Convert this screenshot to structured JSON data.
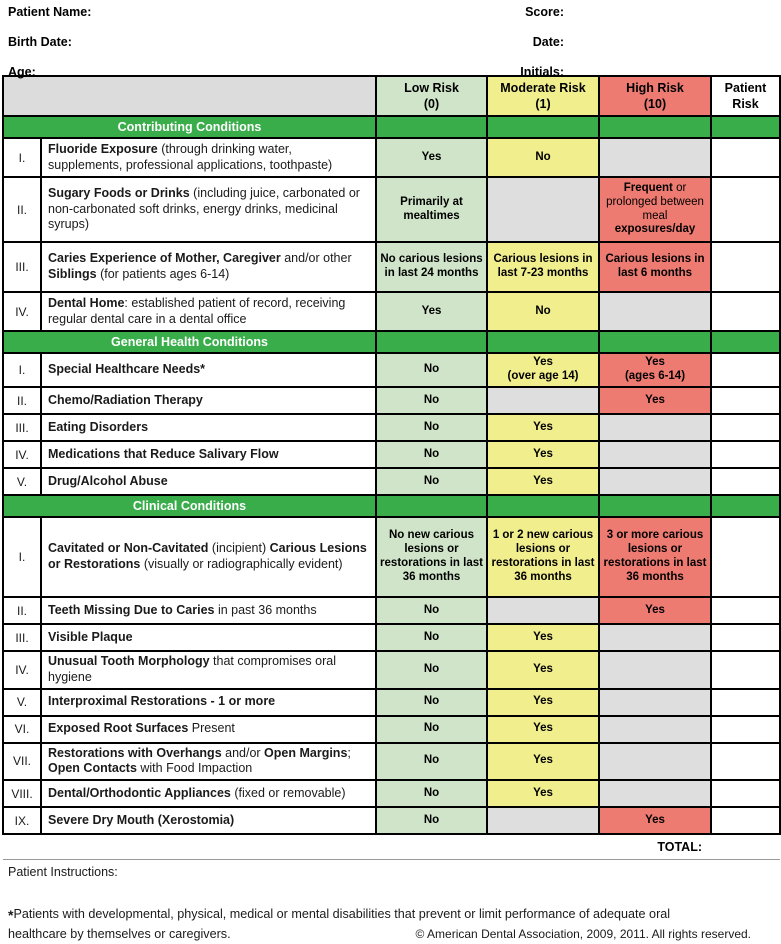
{
  "colors": {
    "section_green": "#3aad4b",
    "low_green": "#cfe4c8",
    "moderate_yellow": "#f1ee8e",
    "high_red": "#ee7b71",
    "na_gray": "#dedede",
    "header_gray": "#dcdcdc"
  },
  "top": {
    "left": [
      "Patient Name:",
      "Birth Date:",
      "Age:"
    ],
    "right": [
      "Score:",
      "Date:",
      "Initials:"
    ]
  },
  "header": {
    "cols": [
      {
        "label": "Low Risk",
        "sub": "(0)"
      },
      {
        "label": "Moderate Risk",
        "sub": "(1)"
      },
      {
        "label": "High Risk",
        "sub": "(10)"
      },
      {
        "label": "Patient",
        "sub": "Risk"
      }
    ]
  },
  "sections": [
    {
      "title": "Contributing Conditions",
      "rows": [
        {
          "num": "I.",
          "desc": [
            {
              "b": 1,
              "t": "Fluoride Exposure"
            },
            {
              "b": 0,
              "t": " (through drinking water, supplements, professional applications, toothpaste)"
            }
          ],
          "low": {
            "label": "Yes"
          },
          "mod": {
            "label": "No"
          },
          "high": {}
        },
        {
          "num": "II.",
          "desc": [
            {
              "b": 1,
              "t": "Sugary Foods or Drinks"
            },
            {
              "b": 0,
              "t": " (including juice, carbonated or non-carbonated soft drinks, energy drinks, medicinal syrups)"
            }
          ],
          "low": {
            "label": "Primarily at mealtimes"
          },
          "mod": {},
          "high": {
            "segs": [
              {
                "b": 1,
                "t": "Frequent"
              },
              {
                "b": 0,
                "t": " or prolonged between meal "
              },
              {
                "b": 1,
                "t": "exposures/day"
              }
            ]
          }
        },
        {
          "num": "III.",
          "desc": [
            {
              "b": 1,
              "t": "Caries Experience of Mother, Caregiver"
            },
            {
              "b": 0,
              "t": " and/or other "
            },
            {
              "b": 1,
              "t": "Siblings"
            },
            {
              "b": 0,
              "t": " (for patients ages 6-14)"
            }
          ],
          "low": {
            "label": "No carious lesions in last 24 months"
          },
          "mod": {
            "label": "Carious lesions in last 7-23 months"
          },
          "high": {
            "label": "Carious lesions in last 6 months"
          }
        },
        {
          "num": "IV.",
          "desc": [
            {
              "b": 1,
              "t": "Dental Home"
            },
            {
              "b": 0,
              "t": ": established patient of record, receiving regular dental care in a dental office"
            }
          ],
          "low": {
            "label": "Yes"
          },
          "mod": {
            "label": "No"
          },
          "high": {}
        }
      ]
    },
    {
      "title": "General Health Conditions",
      "rows": [
        {
          "num": "I.",
          "desc": [
            {
              "b": 1,
              "t": "Special Healthcare Needs*"
            }
          ],
          "low": {
            "label": "No"
          },
          "mod": {
            "label": "Yes",
            "sub": "(over age 14)"
          },
          "high": {
            "label": "Yes",
            "sub": "(ages 6-14)"
          }
        },
        {
          "num": "II.",
          "desc": [
            {
              "b": 1,
              "t": "Chemo/Radiation Therapy"
            }
          ],
          "low": {
            "label": "No"
          },
          "mod": {},
          "high": {
            "label": "Yes"
          }
        },
        {
          "num": "III.",
          "desc": [
            {
              "b": 1,
              "t": "Eating Disorders"
            }
          ],
          "low": {
            "label": "No"
          },
          "mod": {
            "label": "Yes"
          },
          "high": {}
        },
        {
          "num": "IV.",
          "desc": [
            {
              "b": 1,
              "t": "Medications that Reduce Salivary Flow"
            }
          ],
          "low": {
            "label": "No"
          },
          "mod": {
            "label": "Yes"
          },
          "high": {}
        },
        {
          "num": "V.",
          "desc": [
            {
              "b": 1,
              "t": "Drug/Alcohol Abuse"
            }
          ],
          "low": {
            "label": "No"
          },
          "mod": {
            "label": "Yes"
          },
          "high": {}
        }
      ]
    },
    {
      "title": "Clinical Conditions",
      "rows": [
        {
          "num": "I.",
          "desc": [
            {
              "b": 1,
              "t": "Cavitated or Non-Cavitated"
            },
            {
              "b": 0,
              "t": " (incipient) "
            },
            {
              "b": 1,
              "t": "Carious Lesions or Restorations"
            },
            {
              "b": 0,
              "t": " (visually or radiographically evident)"
            }
          ],
          "low": {
            "label": "No new carious lesions or restorations in last 36 months"
          },
          "mod": {
            "label": "1 or 2 new carious lesions or restorations in last 36 months"
          },
          "high": {
            "label": "3 or more carious lesions or restorations in last 36 months"
          }
        },
        {
          "num": "II.",
          "desc": [
            {
              "b": 1,
              "t": "Teeth Missing Due to Caries"
            },
            {
              "b": 0,
              "t": " in past 36 months"
            }
          ],
          "low": {
            "label": "No"
          },
          "mod": {},
          "high": {
            "label": "Yes"
          }
        },
        {
          "num": "III.",
          "desc": [
            {
              "b": 1,
              "t": "Visible Plaque"
            }
          ],
          "low": {
            "label": "No"
          },
          "mod": {
            "label": "Yes"
          },
          "high": {}
        },
        {
          "num": "IV.",
          "desc": [
            {
              "b": 1,
              "t": "Unusual Tooth Morphology"
            },
            {
              "b": 0,
              "t": " that compromises oral hygiene"
            }
          ],
          "low": {
            "label": "No"
          },
          "mod": {
            "label": "Yes"
          },
          "high": {}
        },
        {
          "num": "V.",
          "desc": [
            {
              "b": 1,
              "t": "Interproximal Restorations - 1 or more"
            }
          ],
          "low": {
            "label": "No"
          },
          "mod": {
            "label": "Yes"
          },
          "high": {}
        },
        {
          "num": "VI.",
          "desc": [
            {
              "b": 1,
              "t": "Exposed Root Surfaces"
            },
            {
              "b": 0,
              "t": " Present"
            }
          ],
          "low": {
            "label": "No"
          },
          "mod": {
            "label": "Yes"
          },
          "high": {}
        },
        {
          "num": "VII.",
          "desc": [
            {
              "b": 1,
              "t": "Restorations with Overhangs"
            },
            {
              "b": 0,
              "t": " and/or "
            },
            {
              "b": 1,
              "t": "Open Margins"
            },
            {
              "b": 0,
              "t": "; "
            },
            {
              "b": 1,
              "t": "Open Contacts"
            },
            {
              "b": 0,
              "t": " with Food Impaction"
            }
          ],
          "low": {
            "label": "No"
          },
          "mod": {
            "label": "Yes"
          },
          "high": {}
        },
        {
          "num": "VIII.",
          "desc": [
            {
              "b": 1,
              "t": "Dental/Orthodontic Appliances"
            },
            {
              "b": 0,
              "t": " (fixed or removable)"
            }
          ],
          "low": {
            "label": "No"
          },
          "mod": {
            "label": "Yes"
          },
          "high": {}
        },
        {
          "num": "IX.",
          "desc": [
            {
              "b": 1,
              "t": "Severe Dry Mouth (Xerostomia)"
            }
          ],
          "low": {
            "label": "No"
          },
          "mod": {},
          "high": {
            "label": "Yes"
          }
        }
      ]
    }
  ],
  "footer": {
    "total_label": "TOTAL:",
    "patient_instructions": "Patient Instructions:",
    "footnote_star": "*",
    "footnote_line1": "Patients with developmental, physical, medical or mental disabilities that prevent or limit performance of adequate oral",
    "footnote_line2": "healthcare by themselves or caregivers.",
    "copyright": "© American Dental Association, 2009, 2011. All rights reserved."
  }
}
